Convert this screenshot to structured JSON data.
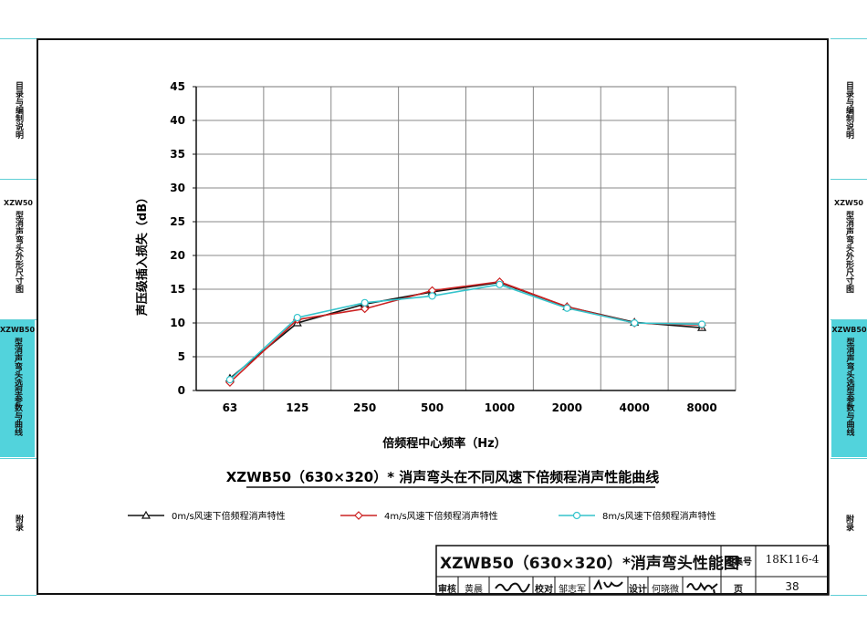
{
  "side_tabs_left": [
    {
      "code": "",
      "label": "目录与编制说明",
      "active": false
    },
    {
      "code": "XZW50",
      "label": "型消声弯头外形尺寸图",
      "active": false
    },
    {
      "code": "XZWB50",
      "label": "型消声弯头选型参数与曲线",
      "active": true
    },
    {
      "code": "",
      "label": "附录",
      "active": false
    }
  ],
  "side_tabs_right": [
    {
      "code": "",
      "label": "目录与编制说明",
      "active": false
    },
    {
      "code": "XZW50",
      "label": "型消声弯头外形尺寸图",
      "active": false
    },
    {
      "code": "XZWB50",
      "label": "型消声弯头选型参数与曲线",
      "active": true
    },
    {
      "code": "",
      "label": "附录",
      "active": false
    }
  ],
  "chart_data": {
    "type": "line",
    "title": "XZWB50（630×320）* 消声弯头在不同风速下倍频程消声性能曲线",
    "xlabel": "倍频程中心频率（Hz）",
    "ylabel": "声压级插入损失（dB）",
    "categories": [
      "63",
      "125",
      "250",
      "500",
      "1000",
      "2000",
      "4000",
      "8000"
    ],
    "ylim": [
      0,
      45
    ],
    "yticks": [
      "0",
      "5",
      "10",
      "15",
      "20",
      "25",
      "30",
      "35",
      "40",
      "45"
    ],
    "grid": true,
    "legend_position": "bottom",
    "series": [
      {
        "name": "0m/s风速下倍频程消声特性",
        "color": "#111111",
        "marker": "triangle",
        "values": [
          1.8,
          10.0,
          12.8,
          14.6,
          16.0,
          12.4,
          10.1,
          9.3
        ]
      },
      {
        "name": "4m/s风速下倍频程消声特性",
        "color": "#cc2222",
        "marker": "diamond",
        "values": [
          1.2,
          10.5,
          12.1,
          14.8,
          16.1,
          12.4,
          10.0,
          9.7
        ]
      },
      {
        "name": "8m/s风速下倍频程消声特性",
        "color": "#35c4cc",
        "marker": "circle",
        "values": [
          1.6,
          10.8,
          13.0,
          14.0,
          15.7,
          12.2,
          10.0,
          9.8
        ]
      }
    ]
  },
  "title_block": {
    "drawing_title": "XZWB50（630×320）*消声弯头性能图",
    "atlas_no_label": "图集号",
    "atlas_no": "18K116-4",
    "review_label": "审核",
    "reviewer": "黄晨",
    "check_label": "校对",
    "checker": "邹志军",
    "design_label": "设计",
    "designer": "何晓微",
    "page_label": "页",
    "page": "38"
  }
}
